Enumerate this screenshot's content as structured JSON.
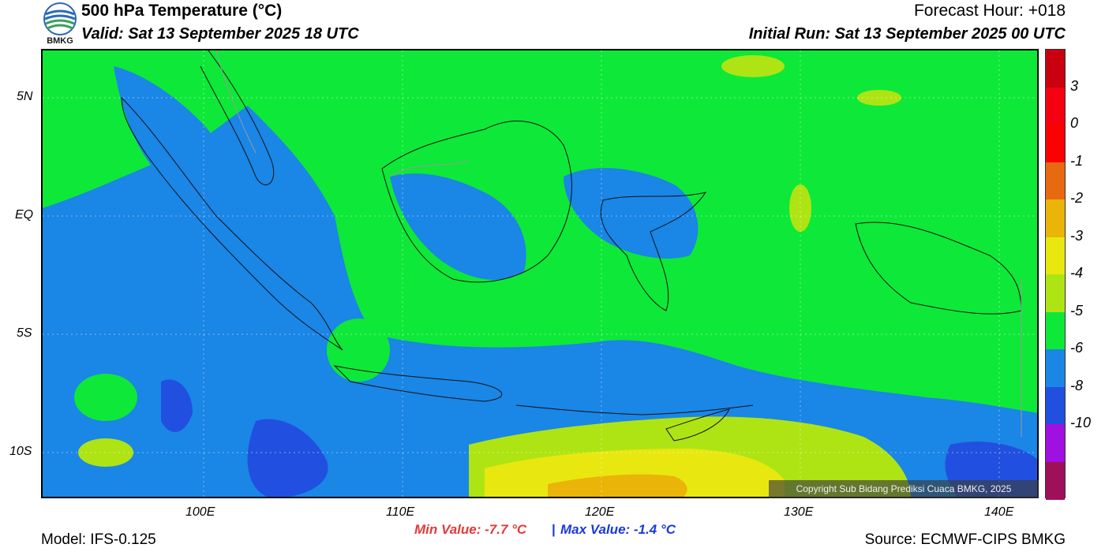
{
  "header": {
    "logo_text": "BMKG",
    "title": "500 hPa Temperature (°C)",
    "valid": "Valid: Sat 13 September 2025 18 UTC",
    "forecast_hour": "Forecast Hour: +018",
    "initial_run": "Initial Run: Sat 13 September 2025 00 UTC"
  },
  "axes": {
    "lat_labels": [
      "5N",
      "EQ",
      "5S",
      "10S"
    ],
    "lon_labels": [
      "100E",
      "110E",
      "120E",
      "130E",
      "140E"
    ]
  },
  "colorbar": {
    "labels": [
      "3",
      "0",
      "-1",
      "-2",
      "-3",
      "-4",
      "-5",
      "-6",
      "-8",
      "-10"
    ],
    "colors": [
      "#c80010",
      "#f40010",
      "#fa0000",
      "#e86a10",
      "#ebb408",
      "#e8e810",
      "#aee414",
      "#0ee838",
      "#1a86e6",
      "#2150e0",
      "#a010e0",
      "#a0105a"
    ]
  },
  "copyright": "Copyright Sub Bidang Prediksi Cuaca BMKG, 2025",
  "footer": {
    "min_value": "Min Value: -7.7 °C",
    "separator": "|",
    "max_value": "Max Value: -1.4 °C",
    "model": "Model: IFS-0.125",
    "source": "Source: ECMWF-CIPS BMKG"
  },
  "map_colors": {
    "green": "#0ee838",
    "blue": "#1a86e6",
    "darkblue": "#2150e0",
    "lightgreen": "#aee414",
    "yellow": "#e8e810",
    "orange": "#ebb408"
  }
}
